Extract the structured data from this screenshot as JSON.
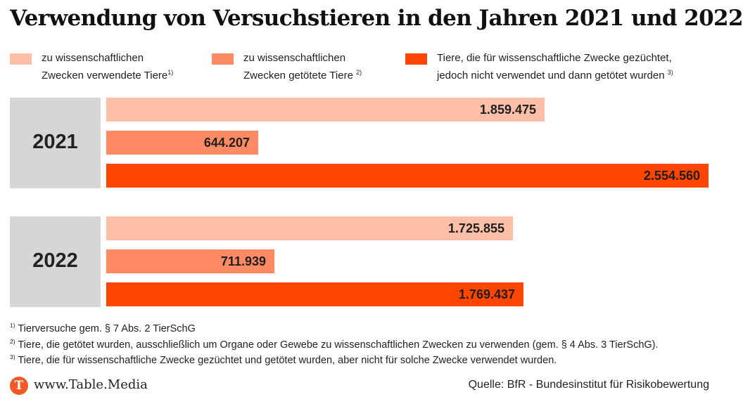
{
  "title": "Verwendung von Versuchstieren in den Jahren 2021 und 2022",
  "legend": [
    {
      "line1": "zu wissenschaftlichen",
      "line2": "Zwecken verwendete Tiere",
      "sup": "1)",
      "color": "#fdbfa8"
    },
    {
      "line1": "zu wissenschaftlichen",
      "line2": "Zwecken getötete Tiere",
      "sup": "2)",
      "color": "#ff8a63"
    },
    {
      "line1": "Tiere, die für wissenschaftliche Zwecke gezüchtet,",
      "line2": "jedoch nicht verwendet und dann getötet wurden",
      "sup": "3)",
      "color": "#ff4500"
    }
  ],
  "chart_data": {
    "type": "bar",
    "orientation": "horizontal",
    "title": "Verwendung von Versuchstieren in den Jahren 2021 und 2022",
    "categories": [
      "2021",
      "2022"
    ],
    "series": [
      {
        "name": "zu wissenschaftlichen Zwecken verwendete Tiere",
        "values": [
          1859475,
          1725855
        ],
        "labels": [
          "1.859.475",
          "1.725.855"
        ],
        "color": "#fdbfa8"
      },
      {
        "name": "zu wissenschaftlichen Zwecken getötete Tiere",
        "values": [
          644207,
          711939
        ],
        "labels": [
          "644.207",
          "711.939"
        ],
        "color": "#ff8a63"
      },
      {
        "name": "Tiere, die für wissenschaftliche Zwecke gezüchtet, jedoch nicht verwendet und dann getötet wurden",
        "values": [
          2554560,
          1769437
        ],
        "labels": [
          "2.554.560",
          "1.769.437"
        ],
        "color": "#ff4500"
      }
    ],
    "xlim": [
      0,
      2554560
    ],
    "grid": false,
    "legend_position": "top"
  },
  "footnotes": [
    {
      "sup": "1)",
      "text": "Tierversuche gem. § 7 Abs. 2 TierSchG"
    },
    {
      "sup": "2)",
      "text": "Tiere, die getötet wurden, ausschließlich um Organe oder Gewebe zu wissenschaftlichen Zwecken zu verwenden (gem. § 4 Abs. 3 TierSchG)."
    },
    {
      "sup": "3)",
      "text": "Tiere, die für wissenschaftliche Zwecke gezüchtet und getötet wurden, aber nicht für solche Zwecke verwendet wurden."
    }
  ],
  "branding": {
    "logo_letter": "T",
    "site": "www.Table.Media",
    "logo_color": "#f15a24"
  },
  "source": "Quelle: BfR - Bundesinstitut für Risikobewertung"
}
